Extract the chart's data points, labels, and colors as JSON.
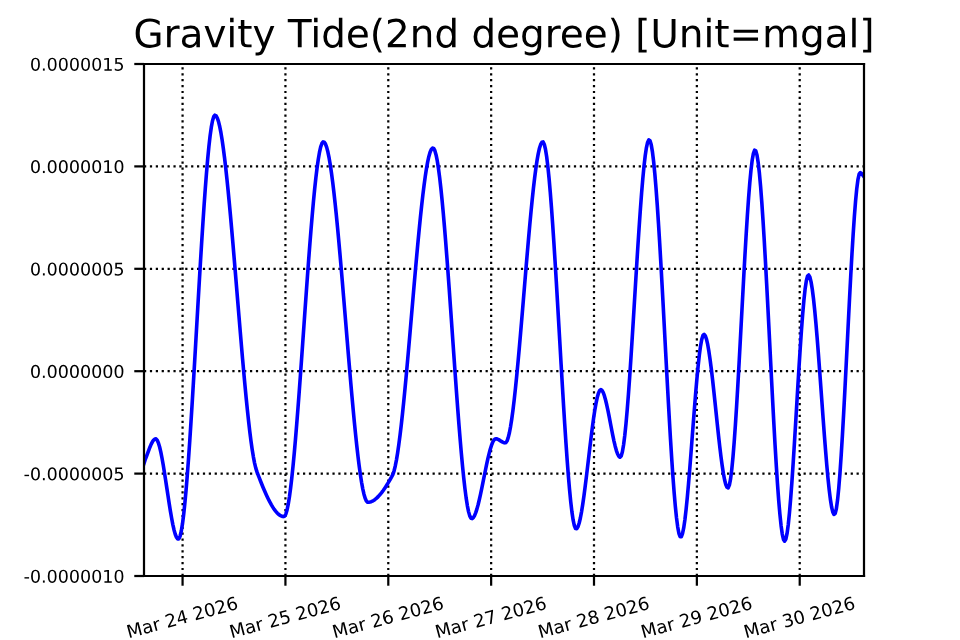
{
  "chart_data": {
    "type": "line",
    "title": "Gravity Tide(2nd degree) [Unit=mgal]",
    "x": [
      "2026-03-23T15:00",
      "2026-03-23T15:19",
      "2026-03-23T17:43",
      "2026-03-23T23:00",
      "2026-03-24T07:34",
      "2026-03-24T17:20",
      "2026-03-24T23:39",
      "2026-03-25T08:52",
      "2026-03-25T19:15",
      "2026-03-26T00:56",
      "2026-03-26T10:25",
      "2026-03-26T19:28",
      "2026-03-27T01:04",
      "2026-03-27T03:18",
      "2026-03-27T12:02",
      "2026-03-27T19:50",
      "2026-03-28T01:35",
      "2026-03-28T06:06",
      "2026-03-28T12:52",
      "2026-03-28T20:14",
      "2026-03-29T01:39",
      "2026-03-29T07:15",
      "2026-03-29T13:34",
      "2026-03-29T20:29",
      "2026-03-30T02:02",
      "2026-03-30T08:05",
      "2026-03-30T14:06",
      "2026-03-30T15:00"
    ],
    "series": [
      {
        "color": "#0000ff",
        "values": [
          -4.5e-07,
          -4.3e-07,
          -3.3e-07,
          -8.2e-07,
          1.25e-06,
          -4.9e-07,
          -7.1e-07,
          1.12e-06,
          -6.4e-07,
          -5.1e-07,
          1.09e-06,
          -7.2e-07,
          -3.3e-07,
          -3.5e-07,
          1.12e-06,
          -7.7e-07,
          -9e-08,
          -4.2e-07,
          1.13e-06,
          -8.1e-07,
          1.8e-07,
          -5.7e-07,
          1.08e-06,
          -8.3e-07,
          4.7e-07,
          -7e-07,
          9.7e-07,
          9.5e-07
        ]
      }
    ],
    "xlim": [
      "2026-03-23T15:00",
      "2026-03-30T15:00"
    ],
    "xticks": [
      {
        "value": "2026-03-24",
        "label": "Mar 24 2026"
      },
      {
        "value": "2026-03-25",
        "label": "Mar 25 2026"
      },
      {
        "value": "2026-03-26",
        "label": "Mar 26 2026"
      },
      {
        "value": "2026-03-27",
        "label": "Mar 27 2026"
      },
      {
        "value": "2026-03-28",
        "label": "Mar 28 2026"
      },
      {
        "value": "2026-03-29",
        "label": "Mar 29 2026"
      },
      {
        "value": "2026-03-30",
        "label": "Mar 30 2026"
      }
    ],
    "ylim": [
      -1e-06,
      1.5e-06
    ],
    "yticks": [
      {
        "value": -1e-06,
        "label": "-0.0000010"
      },
      {
        "value": -5e-07,
        "label": "-0.0000005"
      },
      {
        "value": 0,
        "label": "0.0000000"
      },
      {
        "value": 5e-07,
        "label": "0.0000005"
      },
      {
        "value": 1e-06,
        "label": "0.0000010"
      },
      {
        "value": 1.5e-06,
        "label": "0.0000015"
      }
    ],
    "grid": true,
    "line_style": "solid",
    "marker": "none"
  }
}
